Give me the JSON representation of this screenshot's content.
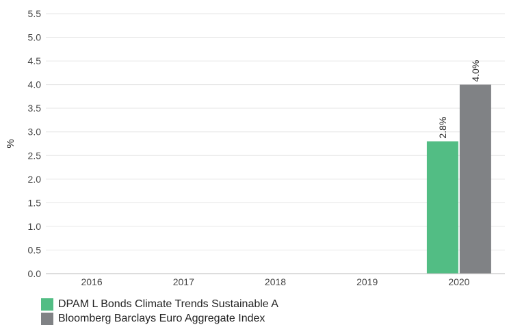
{
  "chart_data": {
    "type": "bar",
    "categories": [
      "2016",
      "2017",
      "2018",
      "2019",
      "2020"
    ],
    "series": [
      {
        "name": "DPAM L Bonds Climate Trends Sustainable A",
        "values": [
          null,
          null,
          null,
          null,
          2.8
        ],
        "labels": [
          "",
          "",
          "",
          "",
          "2.8%"
        ],
        "color": "#52bd84"
      },
      {
        "name": "Bloomberg Barclays Euro Aggregate Index",
        "values": [
          null,
          null,
          null,
          null,
          4.0
        ],
        "labels": [
          "",
          "",
          "",
          "",
          "4.0%"
        ],
        "color": "#808285"
      }
    ],
    "ylabel": "%",
    "ylim": [
      0,
      5.5
    ],
    "yticks": [
      "0.0",
      "0.5",
      "1.0",
      "1.5",
      "2.0",
      "2.5",
      "3.0",
      "3.5",
      "4.0",
      "4.5",
      "5.0",
      "5.5"
    ],
    "grid": true,
    "legend_position": "bottom-left"
  }
}
